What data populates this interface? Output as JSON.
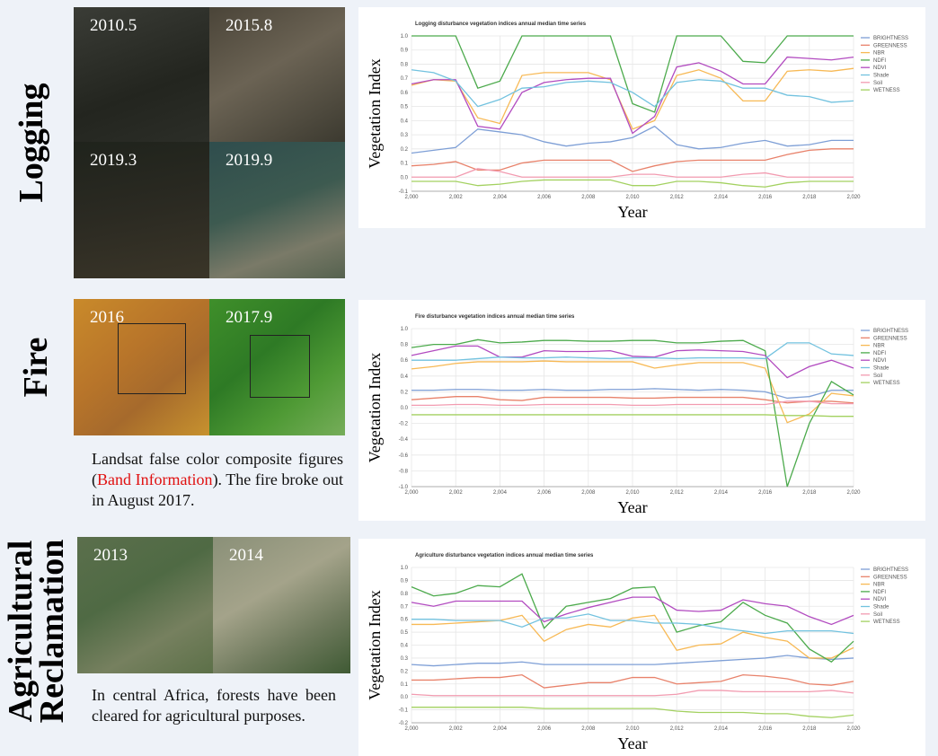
{
  "rows": {
    "logging": "Logging",
    "fire": "Fire",
    "agriculture": [
      "Agricultural",
      "Reclamation"
    ]
  },
  "images": {
    "logging": [
      "2010.5",
      "2015.8",
      "2019.3",
      "2019.9"
    ],
    "fire": [
      "2016",
      "2017.9"
    ],
    "agriculture": [
      "2013",
      "2014"
    ]
  },
  "captions": {
    "fire": [
      "Landsat false color composite figures (",
      "Band Information",
      "). The fire broke out in August 2017."
    ],
    "agriculture": "In central Africa, forests have been cleared for agricultural purposes."
  },
  "chart_data": [
    {
      "type": "line",
      "title": "Logging disturbance vegetation indices annual median time series",
      "xlabel": "Year",
      "ylabel": "Vegetation Index",
      "x": [
        2000,
        2001,
        2002,
        2003,
        2004,
        2005,
        2006,
        2007,
        2008,
        2009,
        2010,
        2011,
        2012,
        2013,
        2014,
        2015,
        2016,
        2017,
        2018,
        2019,
        2020
      ],
      "xlim": [
        2000,
        2020
      ],
      "xticks": [
        {
          "value": 2000,
          "label": "2,000"
        },
        {
          "value": 2002,
          "label": "2,002"
        },
        {
          "value": 2004,
          "label": "2,004"
        },
        {
          "value": 2006,
          "label": "2,006"
        },
        {
          "value": 2008,
          "label": "2,008"
        },
        {
          "value": 2010,
          "label": "2,010"
        },
        {
          "value": 2012,
          "label": "2,012"
        },
        {
          "value": 2014,
          "label": "2,014"
        },
        {
          "value": 2016,
          "label": "2,016"
        },
        {
          "value": 2018,
          "label": "2,018"
        },
        {
          "value": 2020,
          "label": "2,020"
        }
      ],
      "ylim": [
        -0.1,
        1.0
      ],
      "yticks": [
        -0.1,
        {
          "value": 0,
          "label": "0.0"
        },
        0.1,
        0.2,
        0.3,
        0.4,
        0.5,
        0.6,
        0.7,
        0.8,
        0.9,
        {
          "value": 1,
          "label": "1.0"
        }
      ],
      "grid": true,
      "legend": "right",
      "series": [
        {
          "name": "BRIGHTNESS",
          "color": "#7e9fd6",
          "values": [
            0.17,
            0.19,
            0.21,
            0.34,
            0.32,
            0.3,
            0.25,
            0.22,
            0.24,
            0.25,
            0.28,
            0.36,
            0.23,
            0.2,
            0.21,
            0.24,
            0.26,
            0.22,
            0.23,
            0.26,
            0.26
          ]
        },
        {
          "name": "GREENNESS",
          "color": "#e8826b",
          "values": [
            0.08,
            0.09,
            0.11,
            0.05,
            0.05,
            0.1,
            0.12,
            0.12,
            0.12,
            0.12,
            0.04,
            0.08,
            0.11,
            0.12,
            0.12,
            0.12,
            0.12,
            0.16,
            0.19,
            0.2,
            0.2
          ]
        },
        {
          "name": "NBR",
          "color": "#f7b955",
          "values": [
            0.65,
            0.69,
            0.68,
            0.42,
            0.38,
            0.72,
            0.74,
            0.74,
            0.74,
            0.69,
            0.34,
            0.4,
            0.72,
            0.76,
            0.7,
            0.54,
            0.54,
            0.75,
            0.76,
            0.75,
            0.77
          ]
        },
        {
          "name": "NDFI",
          "color": "#4caa4c",
          "values": [
            1.0,
            1.0,
            1.0,
            0.63,
            0.68,
            1.0,
            1.0,
            1.0,
            1.0,
            1.0,
            0.52,
            0.46,
            1.0,
            1.0,
            1.0,
            0.82,
            0.81,
            1.0,
            1.0,
            1.0,
            1.0
          ]
        },
        {
          "name": "NDVI",
          "color": "#b24bc0",
          "values": [
            0.66,
            0.69,
            0.69,
            0.36,
            0.34,
            0.6,
            0.67,
            0.69,
            0.7,
            0.7,
            0.31,
            0.43,
            0.78,
            0.81,
            0.75,
            0.66,
            0.66,
            0.85,
            0.84,
            0.83,
            0.85
          ]
        },
        {
          "name": "Shade",
          "color": "#72c2df",
          "values": [
            0.76,
            0.74,
            0.68,
            0.5,
            0.55,
            0.63,
            0.64,
            0.67,
            0.68,
            0.67,
            0.6,
            0.5,
            0.67,
            0.69,
            0.68,
            0.63,
            0.63,
            0.58,
            0.57,
            0.53,
            0.54
          ]
        },
        {
          "name": "Soil",
          "color": "#f29bb0",
          "values": [
            0.0,
            0.0,
            0.0,
            0.06,
            0.04,
            0.0,
            0.0,
            0.0,
            0.0,
            0.0,
            0.02,
            0.02,
            0.0,
            0.0,
            0.0,
            0.02,
            0.03,
            0.0,
            0.0,
            0.0,
            0.0
          ]
        },
        {
          "name": "WETNESS",
          "color": "#a3d160",
          "values": [
            -0.03,
            -0.03,
            -0.03,
            -0.06,
            -0.05,
            -0.03,
            -0.02,
            -0.02,
            -0.02,
            -0.02,
            -0.06,
            -0.06,
            -0.03,
            -0.03,
            -0.04,
            -0.06,
            -0.07,
            -0.04,
            -0.03,
            -0.03,
            -0.03
          ]
        }
      ]
    },
    {
      "type": "line",
      "title": "Fire disturbance vegetation indices annual median time series",
      "xlabel": "Year",
      "ylabel": "Vegetation Index",
      "x": [
        2000,
        2001,
        2002,
        2003,
        2004,
        2005,
        2006,
        2007,
        2008,
        2009,
        2010,
        2011,
        2012,
        2013,
        2014,
        2015,
        2016,
        2017,
        2018,
        2019,
        2020
      ],
      "xlim": [
        2000,
        2020
      ],
      "xticks": [
        {
          "value": 2000,
          "label": "2,000"
        },
        {
          "value": 2002,
          "label": "2,002"
        },
        {
          "value": 2004,
          "label": "2,004"
        },
        {
          "value": 2006,
          "label": "2,006"
        },
        {
          "value": 2008,
          "label": "2,008"
        },
        {
          "value": 2010,
          "label": "2,010"
        },
        {
          "value": 2012,
          "label": "2,012"
        },
        {
          "value": 2014,
          "label": "2,014"
        },
        {
          "value": 2016,
          "label": "2,016"
        },
        {
          "value": 2018,
          "label": "2,018"
        },
        {
          "value": 2020,
          "label": "2,020"
        }
      ],
      "ylim": [
        -1.0,
        1.0
      ],
      "yticks": [
        {
          "value": -1,
          "label": "-1.0"
        },
        -0.8,
        -0.6,
        -0.4,
        -0.2,
        {
          "value": 0,
          "label": "0.0"
        },
        0.2,
        0.4,
        0.6,
        0.8,
        {
          "value": 1,
          "label": "1.0"
        }
      ],
      "grid": true,
      "legend": "right",
      "series": [
        {
          "name": "BRIGHTNESS",
          "color": "#7e9fd6",
          "values": [
            0.22,
            0.22,
            0.23,
            0.23,
            0.22,
            0.22,
            0.23,
            0.22,
            0.22,
            0.23,
            0.23,
            0.24,
            0.23,
            0.22,
            0.23,
            0.22,
            0.2,
            0.12,
            0.14,
            0.22,
            0.22
          ]
        },
        {
          "name": "GREENNESS",
          "color": "#e8826b",
          "values": [
            0.1,
            0.12,
            0.14,
            0.14,
            0.1,
            0.09,
            0.13,
            0.13,
            0.13,
            0.13,
            0.12,
            0.12,
            0.13,
            0.13,
            0.13,
            0.13,
            0.1,
            0.06,
            0.08,
            0.08,
            0.06
          ]
        },
        {
          "name": "NBR",
          "color": "#f7b955",
          "values": [
            0.49,
            0.52,
            0.56,
            0.58,
            0.58,
            0.58,
            0.59,
            0.58,
            0.58,
            0.58,
            0.58,
            0.5,
            0.54,
            0.57,
            0.57,
            0.57,
            0.5,
            -0.19,
            -0.08,
            0.18,
            0.15
          ]
        },
        {
          "name": "NDFI",
          "color": "#4caa4c",
          "values": [
            0.76,
            0.8,
            0.8,
            0.86,
            0.82,
            0.83,
            0.85,
            0.85,
            0.84,
            0.84,
            0.85,
            0.85,
            0.82,
            0.82,
            0.84,
            0.85,
            0.72,
            -1.0,
            -0.2,
            0.33,
            0.16
          ]
        },
        {
          "name": "NDVI",
          "color": "#b24bc0",
          "values": [
            0.66,
            0.72,
            0.78,
            0.78,
            0.64,
            0.64,
            0.72,
            0.71,
            0.71,
            0.72,
            0.65,
            0.64,
            0.72,
            0.73,
            0.72,
            0.71,
            0.66,
            0.38,
            0.52,
            0.6,
            0.5
          ]
        },
        {
          "name": "Shade",
          "color": "#72c2df",
          "values": [
            0.6,
            0.6,
            0.6,
            0.62,
            0.64,
            0.63,
            0.63,
            0.64,
            0.63,
            0.62,
            0.63,
            0.63,
            0.62,
            0.63,
            0.63,
            0.63,
            0.62,
            0.82,
            0.82,
            0.68,
            0.66
          ]
        },
        {
          "name": "Soil",
          "color": "#f29bb0",
          "values": [
            0.03,
            0.03,
            0.04,
            0.04,
            0.03,
            0.03,
            0.04,
            0.04,
            0.04,
            0.04,
            0.03,
            0.03,
            0.04,
            0.04,
            0.04,
            0.04,
            0.04,
            0.08,
            0.08,
            0.05,
            0.05
          ]
        },
        {
          "name": "WETNESS",
          "color": "#a3d160",
          "values": [
            -0.09,
            -0.09,
            -0.09,
            -0.09,
            -0.09,
            -0.09,
            -0.09,
            -0.09,
            -0.09,
            -0.09,
            -0.09,
            -0.09,
            -0.09,
            -0.09,
            -0.09,
            -0.09,
            -0.09,
            -0.1,
            -0.1,
            -0.11,
            -0.11
          ]
        }
      ]
    },
    {
      "type": "line",
      "title": "Agriculture disturbance vegetation indices annual median time series",
      "xlabel": "Year",
      "ylabel": "Vegetation Index",
      "x": [
        2000,
        2001,
        2002,
        2003,
        2004,
        2005,
        2006,
        2007,
        2008,
        2009,
        2010,
        2011,
        2012,
        2013,
        2014,
        2015,
        2016,
        2017,
        2018,
        2019,
        2020
      ],
      "xlim": [
        2000,
        2020
      ],
      "xticks": [
        {
          "value": 2000,
          "label": "2,000"
        },
        {
          "value": 2002,
          "label": "2,002"
        },
        {
          "value": 2004,
          "label": "2,004"
        },
        {
          "value": 2006,
          "label": "2,006"
        },
        {
          "value": 2008,
          "label": "2,008"
        },
        {
          "value": 2010,
          "label": "2,010"
        },
        {
          "value": 2012,
          "label": "2,012"
        },
        {
          "value": 2014,
          "label": "2,014"
        },
        {
          "value": 2016,
          "label": "2,016"
        },
        {
          "value": 2018,
          "label": "2,018"
        },
        {
          "value": 2020,
          "label": "2,020"
        }
      ],
      "ylim": [
        -0.2,
        1.0
      ],
      "yticks": [
        -0.2,
        -0.1,
        {
          "value": 0,
          "label": "0.0"
        },
        0.1,
        0.2,
        0.3,
        0.4,
        0.5,
        0.6,
        0.7,
        0.8,
        0.9,
        {
          "value": 1,
          "label": "1.0"
        }
      ],
      "grid": true,
      "legend": "right",
      "series": [
        {
          "name": "BRIGHTNESS",
          "color": "#7e9fd6",
          "values": [
            0.25,
            0.24,
            0.25,
            0.26,
            0.26,
            0.27,
            0.25,
            0.25,
            0.25,
            0.25,
            0.25,
            0.25,
            0.26,
            0.27,
            0.28,
            0.29,
            0.3,
            0.32,
            0.3,
            0.29,
            0.3
          ]
        },
        {
          "name": "GREENNESS",
          "color": "#e8826b",
          "values": [
            0.13,
            0.13,
            0.14,
            0.15,
            0.15,
            0.17,
            0.07,
            0.09,
            0.11,
            0.11,
            0.15,
            0.15,
            0.1,
            0.11,
            0.12,
            0.17,
            0.16,
            0.14,
            0.1,
            0.09,
            0.12
          ]
        },
        {
          "name": "NBR",
          "color": "#f7b955",
          "values": [
            0.56,
            0.56,
            0.57,
            0.58,
            0.59,
            0.63,
            0.43,
            0.52,
            0.56,
            0.54,
            0.61,
            0.63,
            0.36,
            0.4,
            0.41,
            0.5,
            0.46,
            0.43,
            0.3,
            0.3,
            0.38
          ]
        },
        {
          "name": "NDFI",
          "color": "#4caa4c",
          "values": [
            0.85,
            0.78,
            0.8,
            0.86,
            0.85,
            0.95,
            0.53,
            0.7,
            0.73,
            0.76,
            0.84,
            0.85,
            0.5,
            0.55,
            0.58,
            0.73,
            0.63,
            0.57,
            0.37,
            0.27,
            0.43
          ]
        },
        {
          "name": "NDVI",
          "color": "#b24bc0",
          "values": [
            0.73,
            0.7,
            0.74,
            0.74,
            0.74,
            0.74,
            0.58,
            0.64,
            0.69,
            0.73,
            0.77,
            0.77,
            0.67,
            0.66,
            0.67,
            0.75,
            0.72,
            0.7,
            0.62,
            0.56,
            0.63
          ]
        },
        {
          "name": "Shade",
          "color": "#72c2df",
          "values": [
            0.6,
            0.6,
            0.59,
            0.59,
            0.59,
            0.54,
            0.61,
            0.61,
            0.64,
            0.59,
            0.59,
            0.57,
            0.57,
            0.56,
            0.53,
            0.51,
            0.49,
            0.51,
            0.51,
            0.51,
            0.49
          ]
        },
        {
          "name": "Soil",
          "color": "#f29bb0",
          "values": [
            0.02,
            0.01,
            0.01,
            0.01,
            0.01,
            0.01,
            0.01,
            0.01,
            0.01,
            0.01,
            0.01,
            0.01,
            0.02,
            0.05,
            0.05,
            0.04,
            0.04,
            0.04,
            0.04,
            0.05,
            0.03
          ]
        },
        {
          "name": "WETNESS",
          "color": "#a3d160",
          "values": [
            -0.08,
            -0.08,
            -0.08,
            -0.08,
            -0.08,
            -0.08,
            -0.09,
            -0.09,
            -0.09,
            -0.09,
            -0.09,
            -0.09,
            -0.11,
            -0.12,
            -0.12,
            -0.12,
            -0.13,
            -0.13,
            -0.15,
            -0.16,
            -0.14
          ]
        }
      ]
    }
  ]
}
